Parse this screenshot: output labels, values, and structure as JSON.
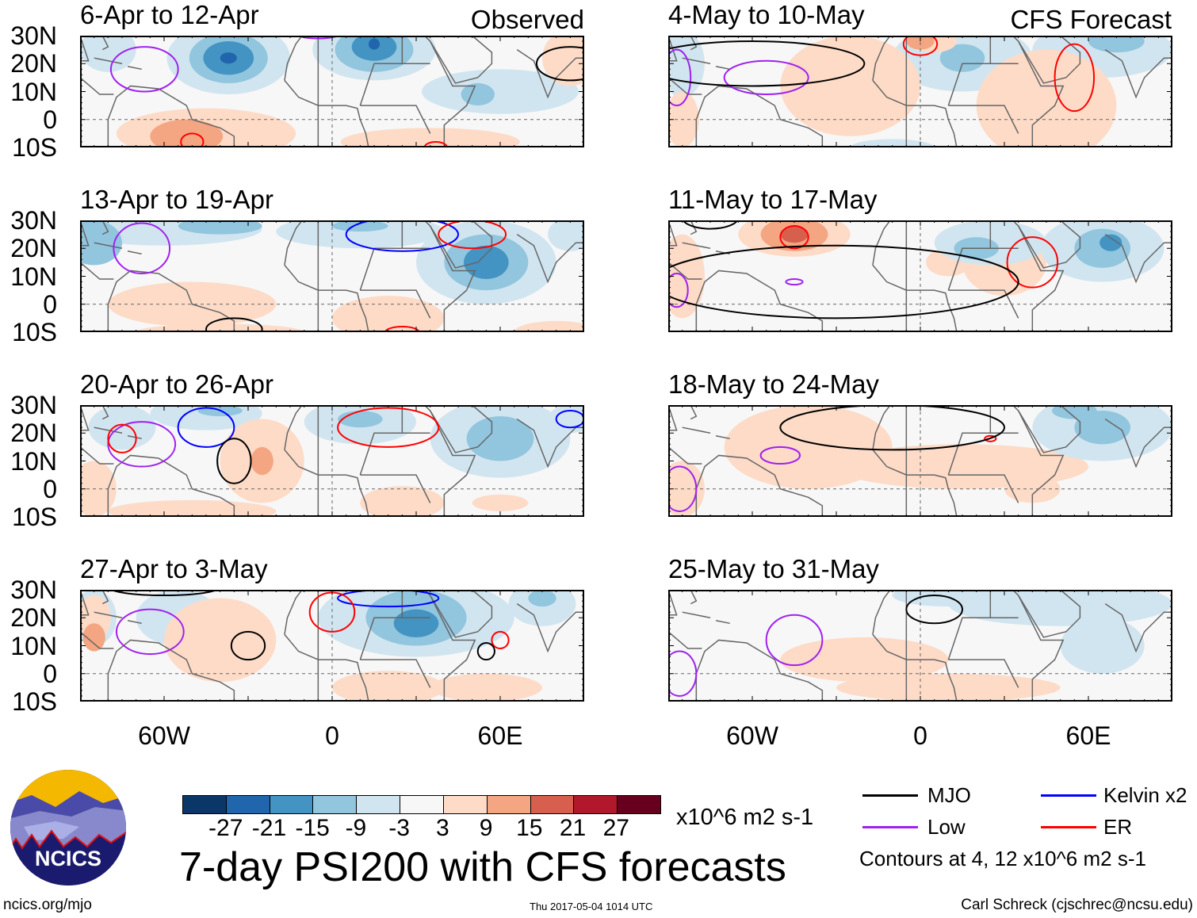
{
  "title": "7-day PSI200 with CFS forecasts",
  "column_labels": {
    "left": "Observed",
    "right": "CFS Forecast"
  },
  "lat_ticks": [
    "30N",
    "20N",
    "10N",
    "0",
    "10S"
  ],
  "lon_ticks": [
    "60W",
    "0",
    "60E"
  ],
  "colorbar": {
    "unit": "x10^6 m2 s-1",
    "labels": [
      "-27",
      "-21",
      "-15",
      "-9",
      "-3",
      "3",
      "9",
      "15",
      "21",
      "27"
    ],
    "colors": [
      "#0b3668",
      "#2166ac",
      "#4393c3",
      "#92c5de",
      "#d1e5f0",
      "#f7f7f7",
      "#fddbc7",
      "#f4a582",
      "#d6604d",
      "#b2182b",
      "#67001f"
    ]
  },
  "legend": {
    "items": [
      {
        "label": "MJO",
        "color": "#000000"
      },
      {
        "label": "Low",
        "color": "#a020f0"
      },
      {
        "label": "Kelvin x2",
        "color": "#0000ff"
      },
      {
        "label": "ER",
        "color": "#ff0000"
      }
    ],
    "note": "Contours at 4, 12 x10^6 m2 s-1"
  },
  "footer": {
    "url": "ncics.org/mjo",
    "timestamp": "Thu 2017-05-04 1014 UTC",
    "author": "Carl Schreck (cjschrec@ncsu.edu)"
  },
  "logo_text": "NCICS",
  "contour_colors": {
    "mjo": "#000000",
    "low": "#a020f0",
    "kelvin": "#0000ff",
    "er": "#ff0000"
  },
  "panels": [
    {
      "title": "6-Apr to 12-Apr",
      "column": "left",
      "row": 0,
      "blobs": [
        [
          -37,
          22,
          22,
          13,
          4
        ],
        [
          -37,
          22,
          14,
          9,
          3
        ],
        [
          -37,
          22,
          9,
          6,
          2
        ],
        [
          -37,
          22,
          3,
          2,
          1
        ],
        [
          15,
          25,
          22,
          11,
          4
        ],
        [
          15,
          25,
          14,
          8,
          3
        ],
        [
          15,
          26,
          8,
          5,
          2
        ],
        [
          15,
          27,
          2,
          2,
          1
        ],
        [
          -80,
          25,
          10,
          8,
          4
        ],
        [
          60,
          10,
          28,
          8,
          4
        ],
        [
          52,
          9,
          6,
          4,
          3
        ],
        [
          -45,
          -5,
          32,
          9,
          6
        ],
        [
          -52,
          -6,
          13,
          6,
          7
        ],
        [
          35,
          -8,
          32,
          5,
          6
        ],
        [
          85,
          22,
          10,
          10,
          6
        ]
      ],
      "contours": [
        [
          -67,
          18,
          12,
          8,
          "low"
        ],
        [
          85,
          20,
          12,
          6,
          "mjo"
        ],
        [
          -50,
          -8,
          4,
          3,
          "er"
        ],
        [
          37,
          -10,
          4,
          2,
          "er"
        ],
        [
          -5,
          32,
          10,
          3,
          "low"
        ]
      ]
    },
    {
      "title": "13-Apr to 19-Apr",
      "column": "left",
      "row": 1,
      "blobs": [
        [
          -60,
          27,
          35,
          6,
          4
        ],
        [
          -85,
          22,
          10,
          8,
          3
        ],
        [
          -40,
          28,
          15,
          3,
          3
        ],
        [
          10,
          26,
          30,
          6,
          4
        ],
        [
          10,
          28,
          10,
          2,
          3
        ],
        [
          55,
          15,
          25,
          15,
          4
        ],
        [
          55,
          15,
          15,
          10,
          3
        ],
        [
          55,
          15,
          8,
          6,
          2
        ],
        [
          85,
          25,
          8,
          6,
          4
        ],
        [
          -50,
          0,
          30,
          8,
          6
        ],
        [
          20,
          -5,
          20,
          8,
          6
        ],
        [
          -40,
          -10,
          30,
          3,
          6
        ],
        [
          80,
          -10,
          15,
          4,
          6
        ]
      ],
      "contours": [
        [
          -68,
          20,
          10,
          9,
          "low"
        ],
        [
          25,
          25,
          20,
          6,
          "kelvin"
        ],
        [
          50,
          25,
          12,
          5,
          "er"
        ],
        [
          -35,
          -9,
          10,
          4,
          "mjo"
        ],
        [
          25,
          -10,
          6,
          2,
          "er"
        ]
      ]
    },
    {
      "title": "20-Apr to 26-Apr",
      "column": "left",
      "row": 2,
      "blobs": [
        [
          -45,
          27,
          20,
          6,
          4
        ],
        [
          -40,
          28,
          8,
          2,
          3
        ],
        [
          10,
          24,
          20,
          8,
          4
        ],
        [
          10,
          25,
          8,
          3,
          3
        ],
        [
          60,
          18,
          25,
          14,
          4
        ],
        [
          60,
          18,
          12,
          8,
          3
        ],
        [
          -75,
          22,
          12,
          8,
          4
        ],
        [
          85,
          25,
          8,
          5,
          4
        ],
        [
          -25,
          10,
          15,
          15,
          6
        ],
        [
          -25,
          10,
          4,
          5,
          7
        ],
        [
          -85,
          0,
          8,
          10,
          6
        ],
        [
          25,
          -5,
          15,
          6,
          6
        ],
        [
          -50,
          -8,
          30,
          4,
          6
        ],
        [
          60,
          -5,
          10,
          3,
          6
        ]
      ],
      "contours": [
        [
          -68,
          16,
          12,
          8,
          "low"
        ],
        [
          -45,
          22,
          10,
          7,
          "kelvin"
        ],
        [
          -75,
          18,
          5,
          5,
          "er"
        ],
        [
          20,
          22,
          18,
          7,
          "er"
        ],
        [
          -35,
          10,
          6,
          8,
          "mjo"
        ],
        [
          85,
          25,
          5,
          3,
          "kelvin"
        ]
      ]
    },
    {
      "title": "27-Apr to 3-May",
      "column": "left",
      "row": 3,
      "blobs": [
        [
          30,
          20,
          35,
          14,
          4
        ],
        [
          30,
          20,
          18,
          10,
          3
        ],
        [
          30,
          18,
          8,
          5,
          2
        ],
        [
          -55,
          20,
          15,
          10,
          4
        ],
        [
          75,
          25,
          12,
          8,
          4
        ],
        [
          75,
          27,
          5,
          3,
          3
        ],
        [
          -85,
          20,
          8,
          10,
          4
        ],
        [
          -40,
          12,
          20,
          15,
          6
        ],
        [
          -85,
          20,
          6,
          8,
          6
        ],
        [
          -85,
          13,
          4,
          5,
          7
        ],
        [
          20,
          -5,
          20,
          6,
          6
        ],
        [
          55,
          -5,
          20,
          5,
          6
        ]
      ],
      "contours": [
        [
          -65,
          15,
          12,
          8,
          "low"
        ],
        [
          20,
          27,
          18,
          3,
          "kelvin"
        ],
        [
          0,
          22,
          8,
          7,
          "er"
        ],
        [
          -30,
          10,
          6,
          5,
          "mjo"
        ],
        [
          60,
          12,
          3,
          3,
          "er"
        ],
        [
          55,
          8,
          3,
          3,
          "mjo"
        ],
        [
          -60,
          31,
          20,
          3,
          "mjo"
        ]
      ]
    },
    {
      "title": "4-May to 10-May",
      "column": "right",
      "row": 0,
      "blobs": [
        [
          15,
          22,
          25,
          12,
          4
        ],
        [
          15,
          22,
          8,
          5,
          3
        ],
        [
          65,
          25,
          25,
          10,
          4
        ],
        [
          70,
          28,
          10,
          4,
          3
        ],
        [
          -85,
          20,
          8,
          12,
          4
        ],
        [
          -10,
          -10,
          15,
          3,
          4
        ],
        [
          -25,
          12,
          25,
          18,
          6
        ],
        [
          -85,
          0,
          6,
          10,
          6
        ],
        [
          45,
          5,
          25,
          20,
          6
        ],
        [
          5,
          28,
          8,
          4,
          6
        ],
        [
          0,
          28,
          5,
          3,
          7
        ]
      ],
      "contours": [
        [
          -55,
          15,
          15,
          6,
          "low"
        ],
        [
          -87,
          15,
          5,
          10,
          "low"
        ],
        [
          55,
          15,
          7,
          12,
          "er"
        ],
        [
          0,
          27,
          6,
          4,
          "er"
        ],
        [
          -60,
          20,
          40,
          8,
          "mjo"
        ]
      ]
    },
    {
      "title": "11-May to 17-May",
      "column": "right",
      "row": 1,
      "blobs": [
        [
          -45,
          25,
          20,
          8,
          6
        ],
        [
          -45,
          25,
          12,
          6,
          7
        ],
        [
          -45,
          25,
          5,
          3,
          8
        ],
        [
          -85,
          10,
          8,
          15,
          6
        ],
        [
          30,
          15,
          15,
          12,
          6
        ],
        [
          10,
          15,
          8,
          5,
          6
        ],
        [
          25,
          22,
          20,
          8,
          4
        ],
        [
          20,
          20,
          8,
          4,
          3
        ],
        [
          65,
          20,
          22,
          12,
          4
        ],
        [
          65,
          20,
          10,
          7,
          3
        ],
        [
          68,
          22,
          4,
          3,
          2
        ]
      ],
      "contours": [
        [
          -45,
          24,
          5,
          4,
          "er"
        ],
        [
          40,
          15,
          9,
          9,
          "er"
        ],
        [
          -45,
          8,
          3,
          1,
          "low"
        ],
        [
          -87,
          5,
          4,
          6,
          "low"
        ],
        [
          -30,
          8,
          65,
          13,
          "mjo"
        ],
        [
          -75,
          31,
          10,
          4,
          "mjo"
        ]
      ]
    },
    {
      "title": "18-May to 24-May",
      "column": "right",
      "row": 2,
      "blobs": [
        [
          -40,
          15,
          30,
          15,
          6
        ],
        [
          15,
          8,
          45,
          8,
          6
        ],
        [
          -85,
          0,
          8,
          10,
          6
        ],
        [
          40,
          0,
          10,
          5,
          6
        ],
        [
          65,
          22,
          25,
          12,
          4
        ],
        [
          65,
          22,
          10,
          6,
          3
        ],
        [
          55,
          28,
          8,
          3,
          3
        ]
      ],
      "contours": [
        [
          -50,
          12,
          7,
          3,
          "low"
        ],
        [
          -86,
          0,
          6,
          8,
          "low"
        ],
        [
          25,
          18,
          2,
          1,
          "er"
        ],
        [
          -10,
          22,
          40,
          8,
          "mjo"
        ]
      ]
    },
    {
      "title": "25-May to 31-May",
      "column": "right",
      "row": 3,
      "blobs": [
        [
          50,
          25,
          40,
          8,
          4
        ],
        [
          65,
          10,
          15,
          10,
          4
        ],
        [
          10,
          28,
          20,
          4,
          4
        ],
        [
          -20,
          5,
          30,
          8,
          6
        ],
        [
          10,
          -5,
          40,
          5,
          6
        ]
      ],
      "contours": [
        [
          -45,
          12,
          10,
          9,
          "low"
        ],
        [
          -86,
          0,
          6,
          8,
          "low"
        ],
        [
          5,
          23,
          10,
          5,
          "mjo"
        ]
      ]
    }
  ]
}
